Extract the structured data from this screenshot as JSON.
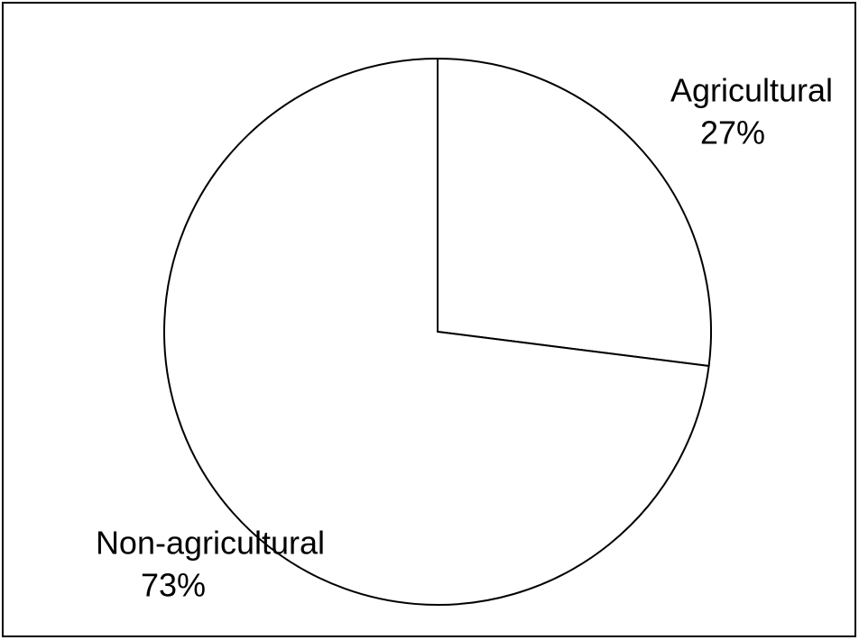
{
  "chart_data": {
    "type": "pie",
    "categories": [
      "Agricultural",
      "Non-agricultural"
    ],
    "values": [
      27,
      73
    ],
    "value_labels": [
      "27%",
      "73%"
    ],
    "colors": [
      "#ffffff",
      "#ffffff"
    ]
  }
}
